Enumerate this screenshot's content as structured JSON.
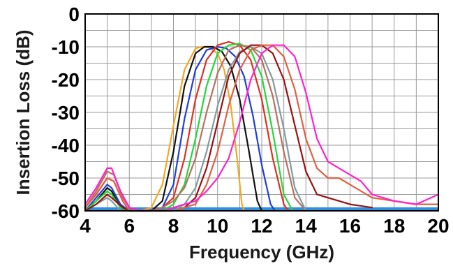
{
  "chart_data": {
    "type": "line",
    "title": "",
    "xlabel": "Frequency (GHz)",
    "ylabel": "Insertion Loss (dB)",
    "xlim": [
      4,
      20
    ],
    "ylim": [
      -60,
      0
    ],
    "x_ticks": [
      4,
      6,
      8,
      10,
      12,
      14,
      16,
      18,
      20
    ],
    "x_tick_labels": [
      "4",
      "6",
      "8",
      "10",
      "12",
      "14",
      "16",
      "18",
      "20"
    ],
    "y_ticks": [
      0,
      -10,
      -20,
      -30,
      -40,
      -50,
      -60
    ],
    "y_tick_labels": [
      "0",
      "-10",
      "-20",
      "-30",
      "-40",
      "-50",
      "-60"
    ],
    "grid": true,
    "x_minor_grid_step": 1,
    "y_minor_grid_step": 5,
    "baseline": {
      "y": -60,
      "color": "#2f8fe0"
    },
    "series": [
      {
        "color": "#f5a623",
        "x": [
          4,
          4.5,
          5,
          5.2,
          5.6,
          6,
          6.5,
          7,
          7.5,
          8,
          8.5,
          9,
          9.3,
          9.6,
          10,
          10.3,
          10.6,
          10.9,
          11.1,
          11.2
        ],
        "y": [
          -60,
          -57,
          -54,
          -55,
          -59,
          -60,
          -60,
          -59,
          -52,
          -34,
          -17,
          -10.5,
          -10,
          -10.2,
          -12,
          -17,
          -28,
          -45,
          -58,
          -60
        ]
      },
      {
        "color": "#111111",
        "x": [
          4,
          4.5,
          5,
          5.2,
          5.6,
          6,
          6.5,
          7,
          7.5,
          8,
          8.5,
          9,
          9.4,
          9.8,
          10.2,
          10.6,
          11,
          11.4,
          11.8,
          12
        ],
        "y": [
          -60,
          -57,
          -53,
          -54,
          -59,
          -60,
          -60,
          -60,
          -57,
          -42,
          -22,
          -12,
          -10,
          -10,
          -11.5,
          -16,
          -26,
          -41,
          -57,
          -60
        ]
      },
      {
        "color": "#1f3fd6",
        "x": [
          4,
          4.5,
          5,
          5.2,
          5.6,
          6,
          6.5,
          7,
          7.5,
          8,
          8.5,
          9,
          9.5,
          10,
          10.4,
          10.8,
          11.2,
          11.6,
          12,
          12.4,
          12.6
        ],
        "y": [
          -60,
          -56,
          -52,
          -53,
          -58,
          -60,
          -60,
          -60,
          -59,
          -52,
          -32,
          -17,
          -11,
          -10,
          -10.5,
          -13,
          -19,
          -31,
          -46,
          -58,
          -60
        ]
      },
      {
        "color": "#e03020",
        "x": [
          4,
          4.5,
          5,
          5.3,
          5.7,
          6,
          6.5,
          7,
          7.5,
          8,
          8.5,
          9,
          9.5,
          10,
          10.5,
          11,
          11.5,
          12,
          12.5,
          13,
          13.2
        ],
        "y": [
          -59,
          -55,
          -50,
          -51,
          -57,
          -60,
          -60,
          -60,
          -59,
          -56,
          -44,
          -26,
          -14,
          -9.5,
          -8.5,
          -9.5,
          -14,
          -26,
          -44,
          -58,
          -60
        ]
      },
      {
        "color": "#22d83a",
        "x": [
          4,
          4.5,
          5,
          5.2,
          5.6,
          6,
          6.5,
          7,
          7.5,
          8,
          8.5,
          9,
          9.5,
          10,
          10.5,
          11,
          11.5,
          12,
          12.5,
          13,
          13.4
        ],
        "y": [
          -60,
          -57,
          -54,
          -55,
          -59,
          -60,
          -60,
          -60,
          -60,
          -58,
          -52,
          -38,
          -22,
          -12,
          -9.5,
          -9,
          -11,
          -19,
          -36,
          -55,
          -60
        ]
      },
      {
        "color": "#b87060",
        "x": [
          4,
          4.5,
          5,
          5.3,
          5.7,
          6,
          6.5,
          7,
          7.5,
          8,
          8.5,
          9,
          9.5,
          10,
          10.5,
          11,
          11.5,
          12,
          12.5,
          13,
          13.5,
          14
        ],
        "y": [
          -59,
          -54,
          -48,
          -49,
          -56,
          -59,
          -60,
          -60,
          -59,
          -57,
          -53,
          -44,
          -30,
          -18,
          -11,
          -9.5,
          -10,
          -14,
          -25,
          -42,
          -56,
          -60
        ]
      },
      {
        "color": "#7f9ca0",
        "x": [
          4,
          4.5,
          5,
          5.2,
          5.6,
          6,
          6.5,
          7,
          7.5,
          8,
          8.5,
          9,
          9.5,
          10,
          10.5,
          11,
          11.5,
          12,
          12.5,
          13,
          13.5,
          14
        ],
        "y": [
          -60,
          -58,
          -56,
          -57,
          -60,
          -60,
          -60,
          -60,
          -60,
          -60,
          -58,
          -53,
          -42,
          -28,
          -17,
          -11.5,
          -10,
          -12,
          -20,
          -35,
          -53,
          -60
        ]
      },
      {
        "color": "#9a1010",
        "x": [
          4,
          4.5,
          5,
          5.2,
          5.7,
          6,
          6.5,
          7,
          7.5,
          8,
          8.5,
          9,
          9.5,
          10,
          10.5,
          11,
          11.5,
          12,
          12.5,
          13,
          13.5,
          14,
          14.5,
          15,
          16,
          17
        ],
        "y": [
          -60,
          -58,
          -55,
          -56,
          -59,
          -60,
          -60,
          -60,
          -60,
          -60,
          -59,
          -56,
          -47,
          -33,
          -19,
          -12,
          -9.5,
          -9.5,
          -12,
          -20,
          -34,
          -48,
          -55,
          -56,
          -58,
          -59
        ]
      },
      {
        "color": "#e06040",
        "x": [
          4,
          4.5,
          5,
          5.3,
          5.7,
          6,
          6.5,
          7,
          7.5,
          8,
          8.5,
          9,
          9.5,
          10,
          10.5,
          11,
          11.5,
          12,
          12.5,
          13,
          13.5,
          14,
          14.5,
          15,
          15.5,
          16,
          17,
          18,
          19,
          20
        ],
        "y": [
          -59,
          -55,
          -50,
          -51,
          -57,
          -60,
          -60,
          -60,
          -60,
          -60,
          -59,
          -58,
          -52,
          -42,
          -28,
          -17,
          -11,
          -9.5,
          -9.5,
          -13,
          -23,
          -38,
          -47,
          -50,
          -50,
          -52,
          -56,
          -57,
          -58,
          -58
        ]
      },
      {
        "color": "#ff22cc",
        "x": [
          4,
          4.5,
          5,
          5.2,
          5.6,
          6,
          6.5,
          7,
          7.5,
          8,
          8.5,
          9,
          9.5,
          10,
          10.5,
          11,
          11.5,
          12,
          12.5,
          13,
          13.5,
          14,
          14.5,
          15,
          15.5,
          16,
          16.5,
          17,
          18,
          19,
          20
        ],
        "y": [
          -58,
          -53,
          -47,
          -47,
          -54,
          -59,
          -60,
          -60,
          -60,
          -59,
          -58,
          -57,
          -54,
          -50,
          -44,
          -33,
          -20,
          -12,
          -9.5,
          -9.5,
          -13,
          -24,
          -38,
          -45,
          -47,
          -49,
          -51,
          -55,
          -57,
          -58,
          -55
        ]
      }
    ]
  }
}
